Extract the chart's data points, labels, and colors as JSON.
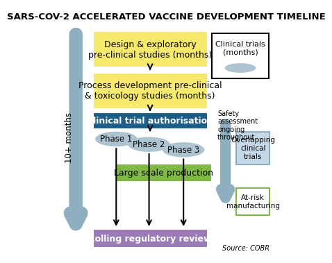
{
  "title": "SARS-COV-2 ACCELERATED VACCINE DEVELOPMENT TIMELINE",
  "title_fontsize": 9.5,
  "bg_color": "#ffffff",
  "box1_text": "Design & exploratory\npre-clinical studies (months)",
  "box2_text": "Process development pre-clinical\n& toxicology studies (months)",
  "box3_text": "Clinical trial authorisation",
  "box4_text": "Large scale production",
  "box5_text": "Rolling regulatory review",
  "phase1_text": "Phase 1",
  "phase2_text": "Phase 2",
  "phase3_text": "Phase 3",
  "legend_box_text": "Clinical trials\n(months)",
  "safety_text": "Safety\nassessment\nongoing\nthroughout",
  "overlap_text": "Overlapping\nclinical\ntrials",
  "atrisk_text": "At-risk\nmanufacturing",
  "months_text": "10+ months",
  "source_text": "Source: COBR",
  "yellow_color": "#f7e96b",
  "blue_dark_color": "#1e5f8a",
  "green_color": "#7fb943",
  "purple_color": "#9b7bb8",
  "phase_ellipse_color": "#adc4d0",
  "legend_ellipse_color": "#adc4d0",
  "side_arrow_color": "#8dafc0",
  "overlap_box_color": "#c5d8e8",
  "overlap_border_color": "#8dafc0",
  "atrisk_border_color": "#7fb943"
}
